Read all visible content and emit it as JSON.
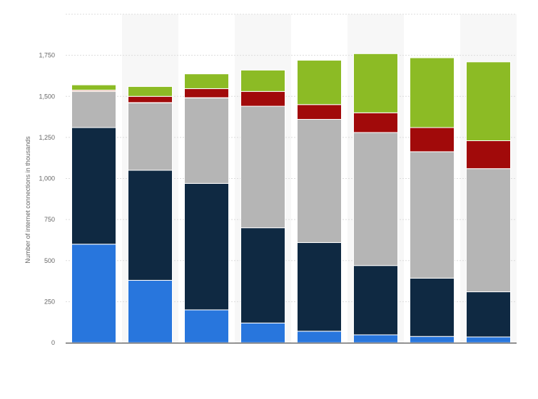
{
  "chart_data": {
    "type": "bar",
    "stacked": true,
    "title": "",
    "xlabel": "",
    "ylabel": "Number of internet connections in thousands",
    "ylim": [
      0,
      2000
    ],
    "yticks": [
      0,
      250,
      500,
      750,
      1000,
      1250,
      1500,
      1750
    ],
    "ytick_labels": [
      "0",
      "250",
      "500",
      "750",
      "1,000",
      "1,250",
      "1,500",
      "1,750"
    ],
    "categories": [
      "",
      "",
      "",
      "",
      "",
      "",
      "",
      ""
    ],
    "grid": true,
    "legend": "none",
    "series": [
      {
        "color": "#2876dd",
        "values": [
          600,
          380,
          200,
          120,
          70,
          48,
          38,
          35
        ]
      },
      {
        "color": "#0f2942",
        "values": [
          710,
          670,
          770,
          580,
          540,
          422,
          355,
          275
        ]
      },
      {
        "color": "#b5b5b5",
        "values": [
          220,
          410,
          520,
          740,
          750,
          810,
          770,
          750
        ]
      },
      {
        "color": "#d9a38a",
        "values": [
          8,
          2,
          2,
          0,
          0,
          0,
          0,
          0
        ]
      },
      {
        "color": "#a10a0a",
        "values": [
          0,
          38,
          55,
          90,
          90,
          120,
          147,
          170
        ]
      },
      {
        "color": "#8cbb25",
        "values": [
          32,
          60,
          90,
          130,
          270,
          360,
          425,
          480
        ]
      }
    ],
    "colors": {
      "band": "#f7f7f7",
      "grid": "#dcdcdc",
      "axis": "#333333",
      "text": "#666666"
    }
  }
}
